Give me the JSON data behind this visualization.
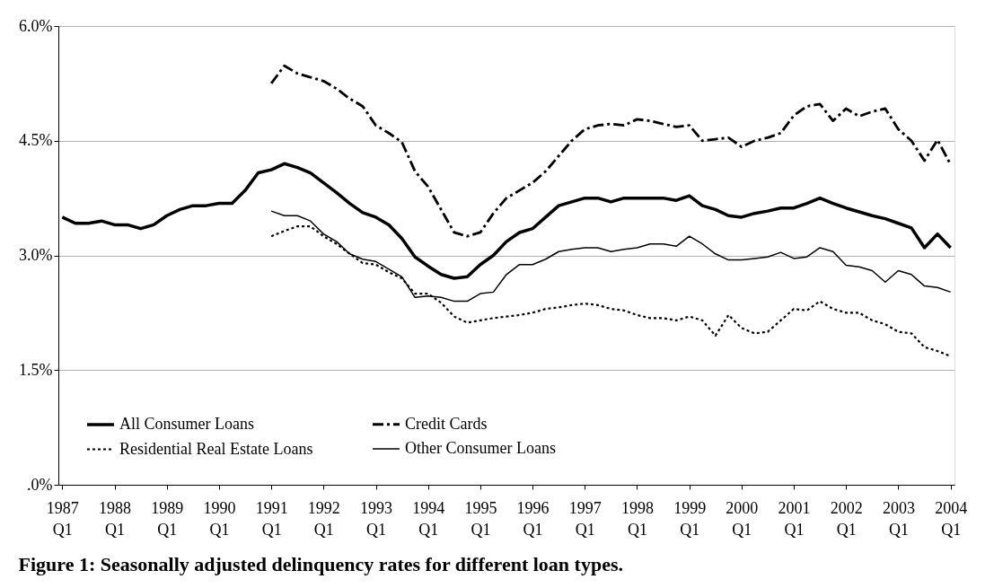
{
  "chart_data": {
    "type": "line",
    "title": "Figure 1:  Seasonally adjusted delinquency rates for different loan types.",
    "categories": [
      "1987 Q1",
      null,
      null,
      null,
      "1988 Q1",
      null,
      null,
      null,
      "1989 Q1",
      null,
      null,
      null,
      "1990 Q1",
      null,
      null,
      null,
      "1991 Q1",
      null,
      null,
      null,
      "1992 Q1",
      null,
      null,
      null,
      "1993 Q1",
      null,
      null,
      null,
      "1994 Q1",
      null,
      null,
      null,
      "1995 Q1",
      null,
      null,
      null,
      "1996 Q1",
      null,
      null,
      null,
      "1997 Q1",
      null,
      null,
      null,
      "1998 Q1",
      null,
      null,
      null,
      "1999 Q1",
      null,
      null,
      null,
      "2000 Q1",
      null,
      null,
      null,
      "2001 Q1",
      null,
      null,
      null,
      "2002 Q1",
      null,
      null,
      null,
      "2003 Q1",
      null,
      null,
      null,
      "2004 Q1"
    ],
    "series": [
      {
        "name": "All Consumer Loans",
        "color": "#000000",
        "line_style": "solid",
        "values": [
          3.5,
          3.42,
          3.42,
          3.45,
          3.4,
          3.4,
          3.35,
          3.4,
          3.52,
          3.6,
          3.65,
          3.65,
          3.68,
          3.68,
          3.85,
          4.08,
          4.12,
          4.2,
          4.15,
          4.08,
          3.95,
          3.82,
          3.68,
          3.56,
          3.5,
          3.4,
          3.22,
          2.98,
          2.86,
          2.75,
          2.7,
          2.72,
          2.88,
          3.0,
          3.18,
          3.3,
          3.35,
          3.5,
          3.65,
          3.7,
          3.75,
          3.75,
          3.7,
          3.75,
          3.75,
          3.75,
          3.75,
          3.72,
          3.78,
          3.65,
          3.6,
          3.52,
          3.5,
          3.55,
          3.58,
          3.62,
          3.62,
          3.68,
          3.75,
          3.68,
          3.62,
          3.57,
          3.52,
          3.48,
          3.42,
          3.36,
          3.1,
          3.28,
          3.1
        ]
      },
      {
        "name": "Credit Cards",
        "color": "#000000",
        "line_style": "dashed",
        "values": [
          null,
          null,
          null,
          null,
          null,
          null,
          null,
          null,
          null,
          null,
          null,
          null,
          null,
          null,
          null,
          null,
          5.25,
          5.48,
          5.38,
          5.33,
          5.28,
          5.18,
          5.05,
          4.95,
          4.7,
          4.6,
          4.48,
          4.1,
          3.9,
          3.6,
          3.3,
          3.25,
          3.3,
          3.55,
          3.75,
          3.85,
          3.95,
          4.1,
          4.3,
          4.5,
          4.65,
          4.7,
          4.72,
          4.7,
          4.78,
          4.76,
          4.72,
          4.68,
          4.7,
          4.5,
          4.52,
          4.54,
          4.42,
          4.5,
          4.54,
          4.6,
          4.83,
          4.95,
          4.98,
          4.76,
          4.92,
          4.82,
          4.88,
          4.92,
          4.65,
          4.5,
          4.24,
          4.51,
          4.19
        ]
      },
      {
        "name": "Residential Real Estate Loans",
        "color": "#000000",
        "line_style": "dotted",
        "values": [
          null,
          null,
          null,
          null,
          null,
          null,
          null,
          null,
          null,
          null,
          null,
          null,
          null,
          null,
          null,
          null,
          3.25,
          3.32,
          3.38,
          3.38,
          3.25,
          3.15,
          3.02,
          2.9,
          2.88,
          2.78,
          2.7,
          2.5,
          2.5,
          2.38,
          2.2,
          2.12,
          2.15,
          2.18,
          2.2,
          2.22,
          2.25,
          2.3,
          2.32,
          2.35,
          2.37,
          2.35,
          2.3,
          2.28,
          2.22,
          2.18,
          2.18,
          2.15,
          2.2,
          2.15,
          1.95,
          2.22,
          2.05,
          1.98,
          2.0,
          2.15,
          2.3,
          2.28,
          2.4,
          2.3,
          2.25,
          2.25,
          2.15,
          2.1,
          2.0,
          1.98,
          1.8,
          1.75,
          1.68
        ]
      },
      {
        "name": "Other Consumer Loans",
        "color": "#000000",
        "line_style": "solid",
        "values": [
          null,
          null,
          null,
          null,
          null,
          null,
          null,
          null,
          null,
          null,
          null,
          null,
          null,
          null,
          null,
          null,
          3.58,
          3.52,
          3.52,
          3.45,
          3.28,
          3.18,
          3.02,
          2.95,
          2.92,
          2.82,
          2.72,
          2.45,
          2.47,
          2.45,
          2.4,
          2.4,
          2.5,
          2.52,
          2.75,
          2.88,
          2.88,
          2.95,
          3.05,
          3.08,
          3.1,
          3.1,
          3.05,
          3.08,
          3.1,
          3.15,
          3.15,
          3.12,
          3.25,
          3.15,
          3.02,
          2.94,
          2.94,
          2.96,
          2.98,
          3.04,
          2.96,
          2.98,
          3.1,
          3.05,
          2.87,
          2.85,
          2.8,
          2.65,
          2.8,
          2.75,
          2.6,
          2.58,
          2.52
        ]
      }
    ],
    "ylim": [
      0,
      6
    ],
    "yticks": [
      {
        "value": 0,
        "label": ".0%"
      },
      {
        "value": 1.5,
        "label": "1.5%"
      },
      {
        "value": 3,
        "label": "3.0%"
      },
      {
        "value": 4.5,
        "label": "4.5%"
      },
      {
        "value": 6,
        "label": "6.0%"
      }
    ],
    "grid": "y",
    "legend": "bottom left",
    "marker": "none"
  }
}
